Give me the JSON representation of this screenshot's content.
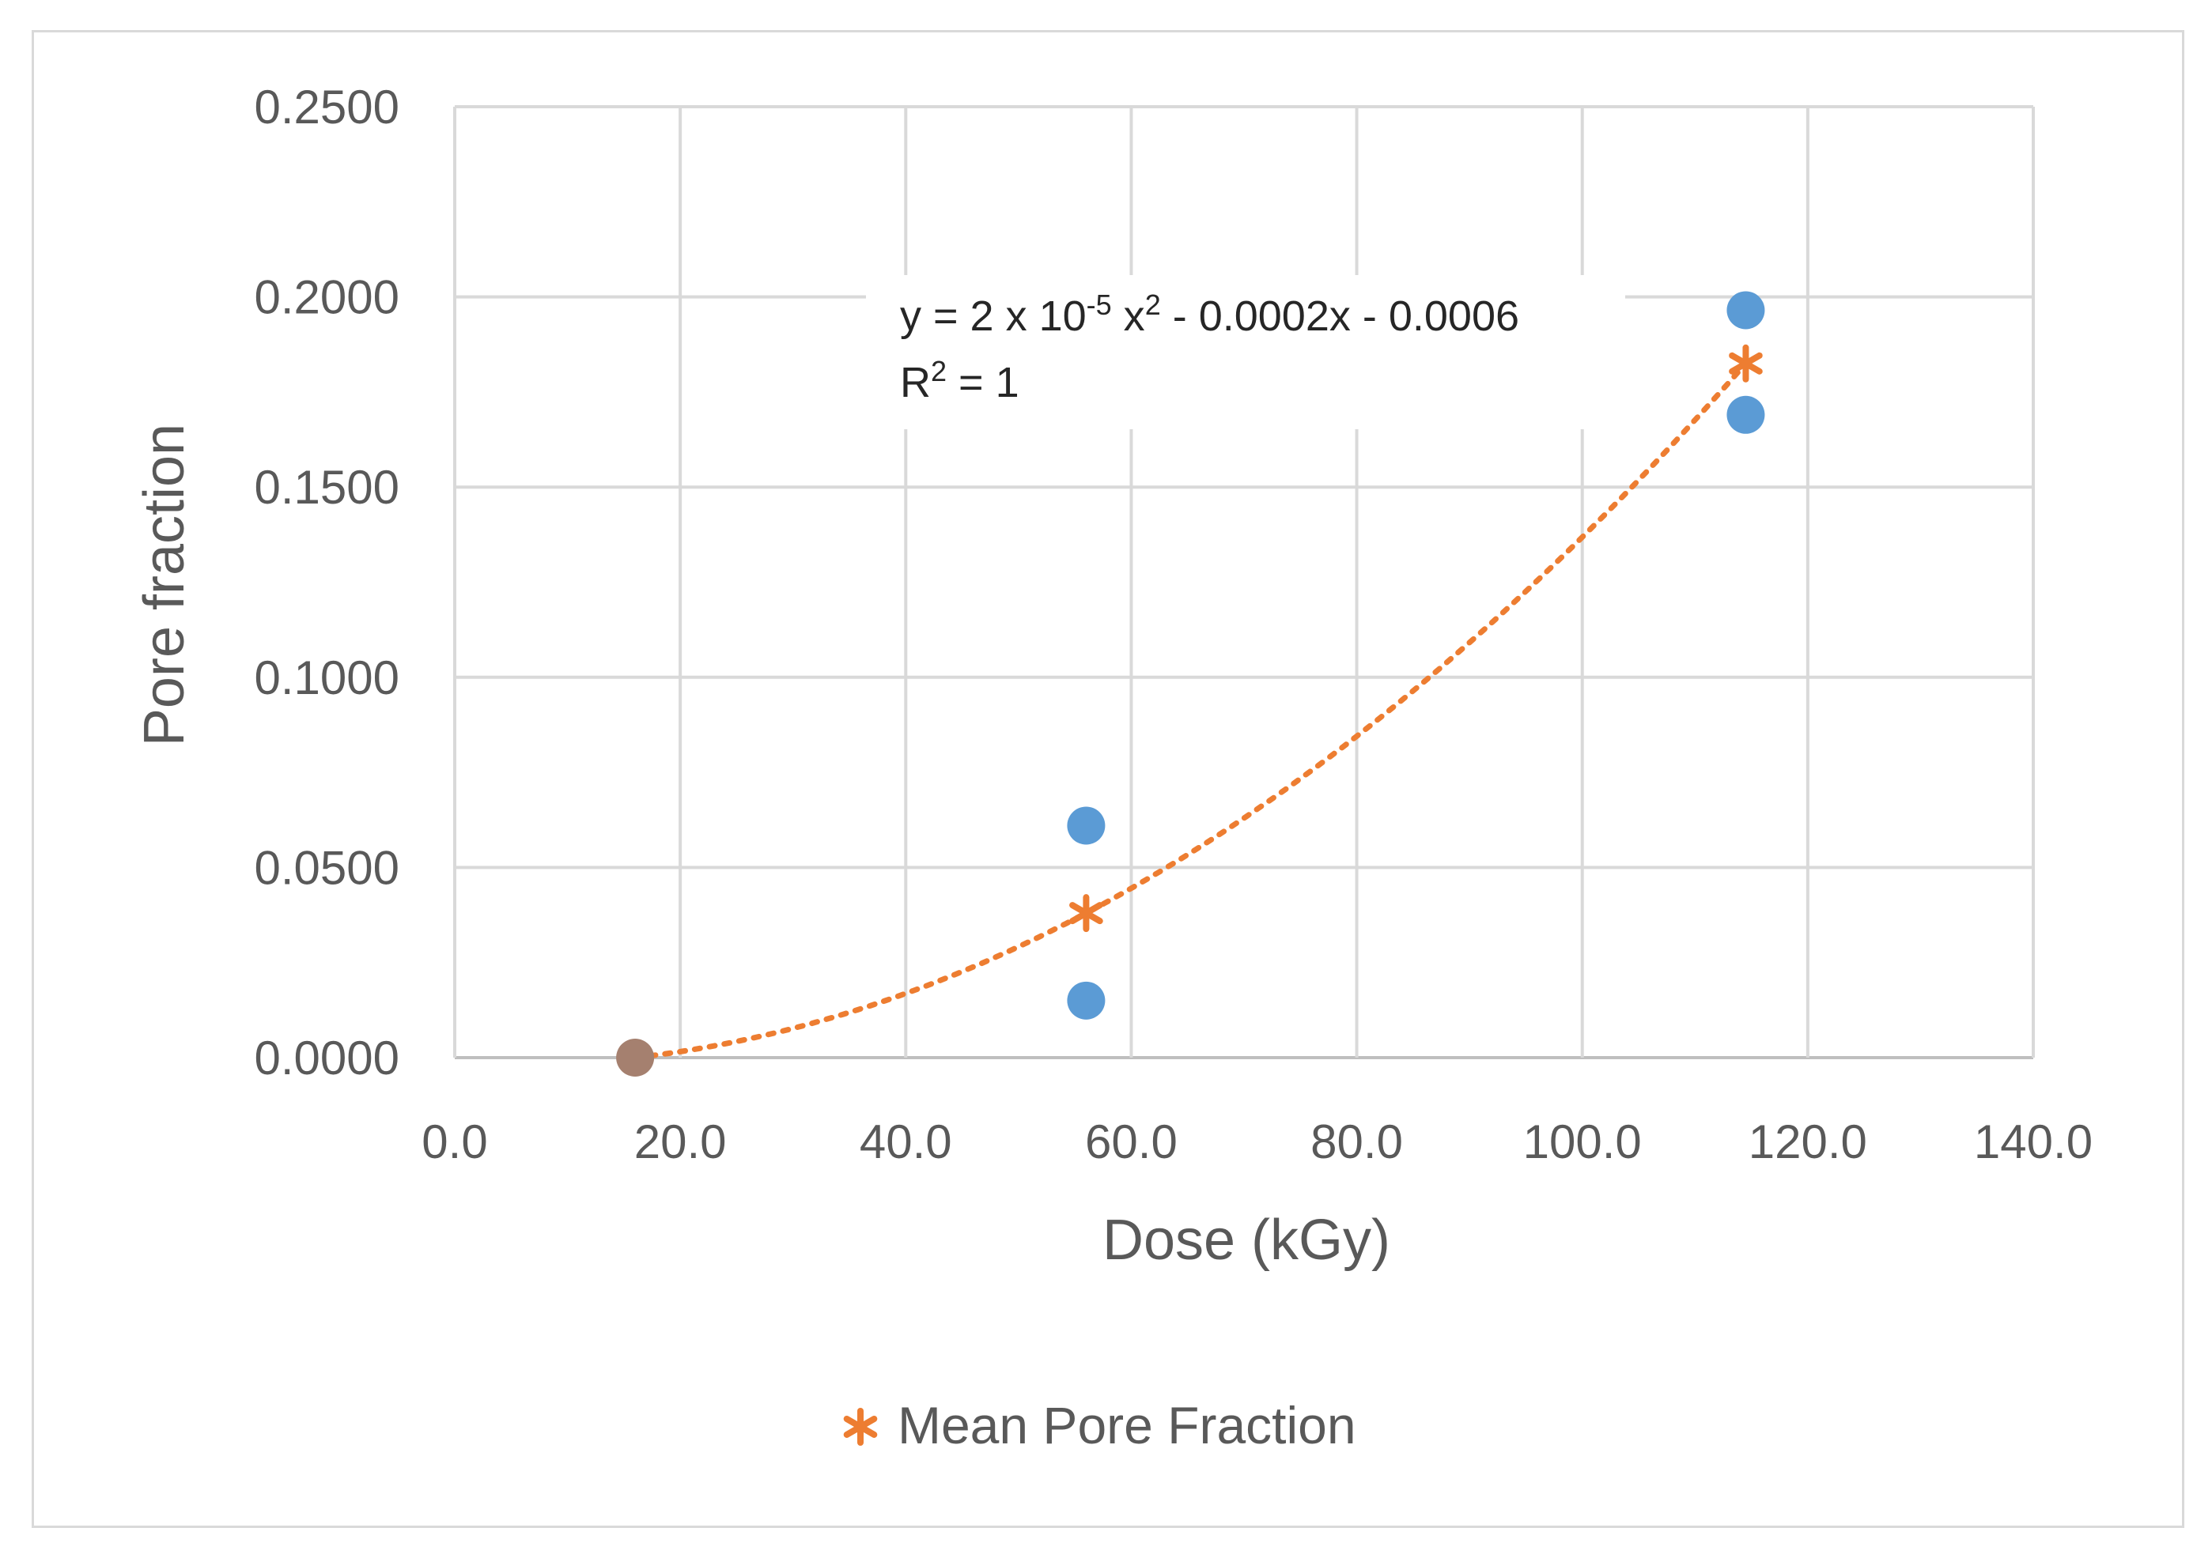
{
  "chart_data": {
    "type": "scatter",
    "title": "",
    "xlabel": "Dose (kGy)",
    "ylabel": "Pore fraction",
    "xlim": [
      0,
      140
    ],
    "ylim": [
      0,
      0.25
    ],
    "x_ticks": [
      0,
      20,
      40,
      60,
      80,
      100,
      120,
      140
    ],
    "x_tick_labels": [
      "0.0",
      "20.0",
      "40.0",
      "60.0",
      "80.0",
      "100.0",
      "120.0",
      "140.0"
    ],
    "y_ticks": [
      0,
      0.05,
      0.1,
      0.15,
      0.2,
      0.25
    ],
    "y_tick_labels": [
      "0.0000",
      "0.0500",
      "0.1000",
      "0.1500",
      "0.2000",
      "0.2500"
    ],
    "grid": true,
    "series": [
      {
        "name": "Pore Fraction",
        "marker": "circle",
        "color": "#5b9bd5",
        "show_in_legend": false,
        "x": [
          16,
          56,
          56,
          114.5,
          114.5
        ],
        "y": [
          0.0,
          0.061,
          0.015,
          0.1965,
          0.169
        ]
      },
      {
        "name": "Mean Pore Fraction",
        "marker": "asterisk",
        "color": "#ed7d31",
        "show_in_legend": true,
        "x": [
          16,
          56,
          114.5
        ],
        "y": [
          0.0,
          0.038,
          0.1825
        ]
      }
    ],
    "trendline": {
      "type": "polynomial",
      "order": 2,
      "series": "Mean Pore Fraction",
      "color": "#ed7d31",
      "style": "dotted",
      "x_range": [
        16,
        114.5
      ],
      "equation_parts": {
        "lhs": "y = 2 x 10",
        "exp1": "-5",
        "mid": " x",
        "exp2": "2",
        "rhs": " - 0.0002x - 0.0006"
      },
      "r2_parts": {
        "base": "R",
        "exp": "2",
        "rest": " = 1"
      }
    },
    "legend": {
      "position": "bottom",
      "entries": [
        "Mean Pore Fraction"
      ]
    },
    "colors": {
      "grid": "#d9d9d9",
      "axis": "#bfbfbf",
      "text": "#595959",
      "overlap_marker": "#a5806f"
    }
  }
}
